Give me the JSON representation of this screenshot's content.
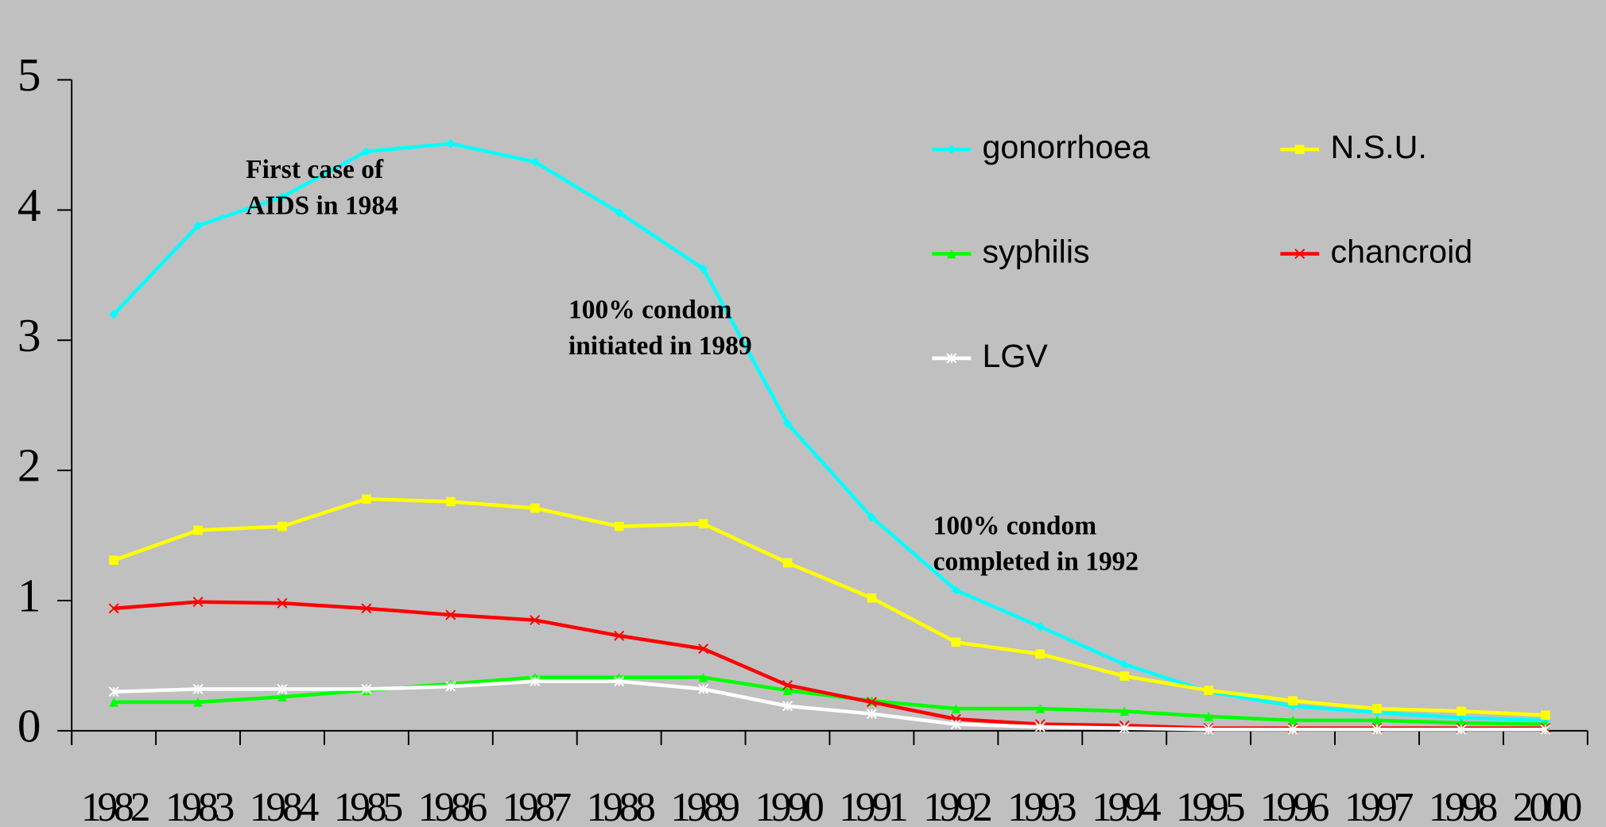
{
  "chart_data": {
    "type": "line",
    "categories": [
      "1982",
      "1983",
      "1984",
      "1985",
      "1986",
      "1987",
      "1988",
      "1989",
      "1990",
      "1991",
      "1992",
      "1993",
      "1994",
      "1995",
      "1996",
      "1997",
      "1998",
      "2000"
    ],
    "ylim": [
      0,
      5
    ],
    "yticks": [
      0,
      1,
      2,
      3,
      4,
      5
    ],
    "series": [
      {
        "name": "gonorrhoea",
        "color": "#00ffff",
        "marker": "diamond",
        "values": [
          3.2,
          3.88,
          4.1,
          4.45,
          4.51,
          4.37,
          3.98,
          3.55,
          2.36,
          1.64,
          1.08,
          0.8,
          0.51,
          0.3,
          0.19,
          0.14,
          0.1,
          0.08
        ]
      },
      {
        "name": "N.S.U.",
        "color": "#ffff00",
        "marker": "square",
        "values": [
          1.31,
          1.54,
          1.57,
          1.78,
          1.76,
          1.71,
          1.57,
          1.59,
          1.29,
          1.02,
          0.68,
          0.59,
          0.42,
          0.31,
          0.23,
          0.17,
          0.15,
          0.12
        ]
      },
      {
        "name": "syphilis",
        "color": "#00ff00",
        "marker": "triangle",
        "values": [
          0.22,
          0.22,
          0.26,
          0.31,
          0.36,
          0.41,
          0.41,
          0.41,
          0.31,
          0.23,
          0.17,
          0.17,
          0.15,
          0.11,
          0.08,
          0.08,
          0.06,
          0.05
        ]
      },
      {
        "name": "chancroid",
        "color": "#ff0000",
        "marker": "x",
        "values": [
          0.94,
          0.99,
          0.98,
          0.94,
          0.89,
          0.85,
          0.73,
          0.63,
          0.35,
          0.22,
          0.09,
          0.05,
          0.04,
          0.02,
          0.02,
          0.02,
          0.02,
          0.02
        ]
      },
      {
        "name": "LGV",
        "color": "#ffffff",
        "marker": "star",
        "values": [
          0.3,
          0.32,
          0.32,
          0.32,
          0.34,
          0.38,
          0.38,
          0.32,
          0.19,
          0.13,
          0.05,
          0.03,
          0.02,
          0.01,
          0.01,
          0.01,
          0.01,
          0.01
        ]
      }
    ],
    "annotations": [
      {
        "lines": [
          "First case of",
          "AIDS in 1984"
        ]
      },
      {
        "lines": [
          "100% condom",
          "initiated in 1989"
        ]
      },
      {
        "lines": [
          "100% condom",
          "completed in 1992"
        ]
      }
    ]
  }
}
